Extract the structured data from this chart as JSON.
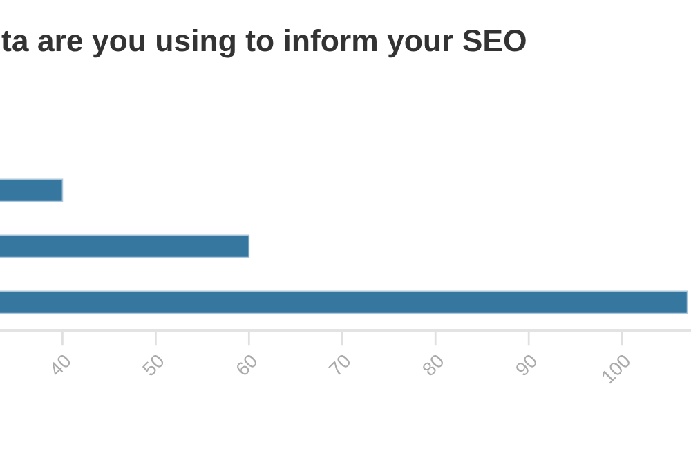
{
  "chart_data": {
    "type": "bar",
    "orientation": "horizontal",
    "title": "ta are you using to inform your SEO",
    "categories": [
      null,
      null,
      null
    ],
    "values": [
      40,
      60,
      107
    ],
    "color": "#3677a0",
    "xlim": [
      33.3,
      107.4
    ],
    "xticks": [
      40,
      50,
      60,
      70,
      80,
      90,
      100
    ],
    "grid": false
  }
}
